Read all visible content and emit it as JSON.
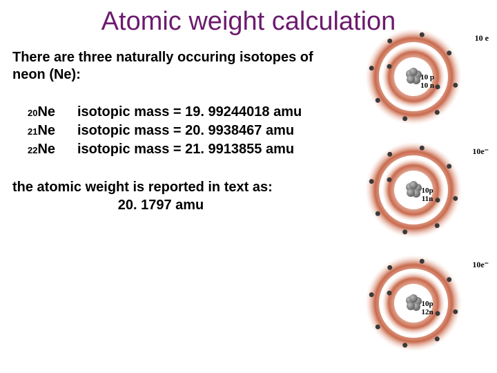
{
  "title": {
    "text": "Atomic weight calculation",
    "color": "#6b1b6e",
    "fontsize": 38
  },
  "intro": "There are three naturally occuring isotopes of neon (Ne):",
  "isotopes": [
    {
      "a": "20",
      "sym": "Ne",
      "line": "isotopic  mass  = 19. 99244018 amu"
    },
    {
      "a": "21",
      "sym": "Ne",
      "line": " isotopic mass  = 20. 9938467 amu"
    },
    {
      "a": "22",
      "sym": "Ne",
      "line": "isotopic mass  = 21. 9913855 amu"
    }
  ],
  "report": {
    "line1": "the atomic weight is reported in text as:",
    "line2": "20. 1797 amu"
  },
  "atom_diagrams": [
    {
      "electron_label": "10 e",
      "nucleus_line1": "10 p",
      "nucleus_line2": "10 n"
    },
    {
      "electron_label": "10e⁻",
      "nucleus_line1": "10p",
      "nucleus_line2": "11n"
    },
    {
      "electron_label": "10e⁻",
      "nucleus_line1": "10p",
      "nucleus_line2": "12n"
    }
  ],
  "diagram_style": {
    "ring_outer_color": "#c96b4f",
    "ring_inner_color": "#f6d9cb",
    "nucleus_color": "#5e5e5e",
    "electron_color": "#3a3a3a",
    "bg": "#ffffff"
  }
}
